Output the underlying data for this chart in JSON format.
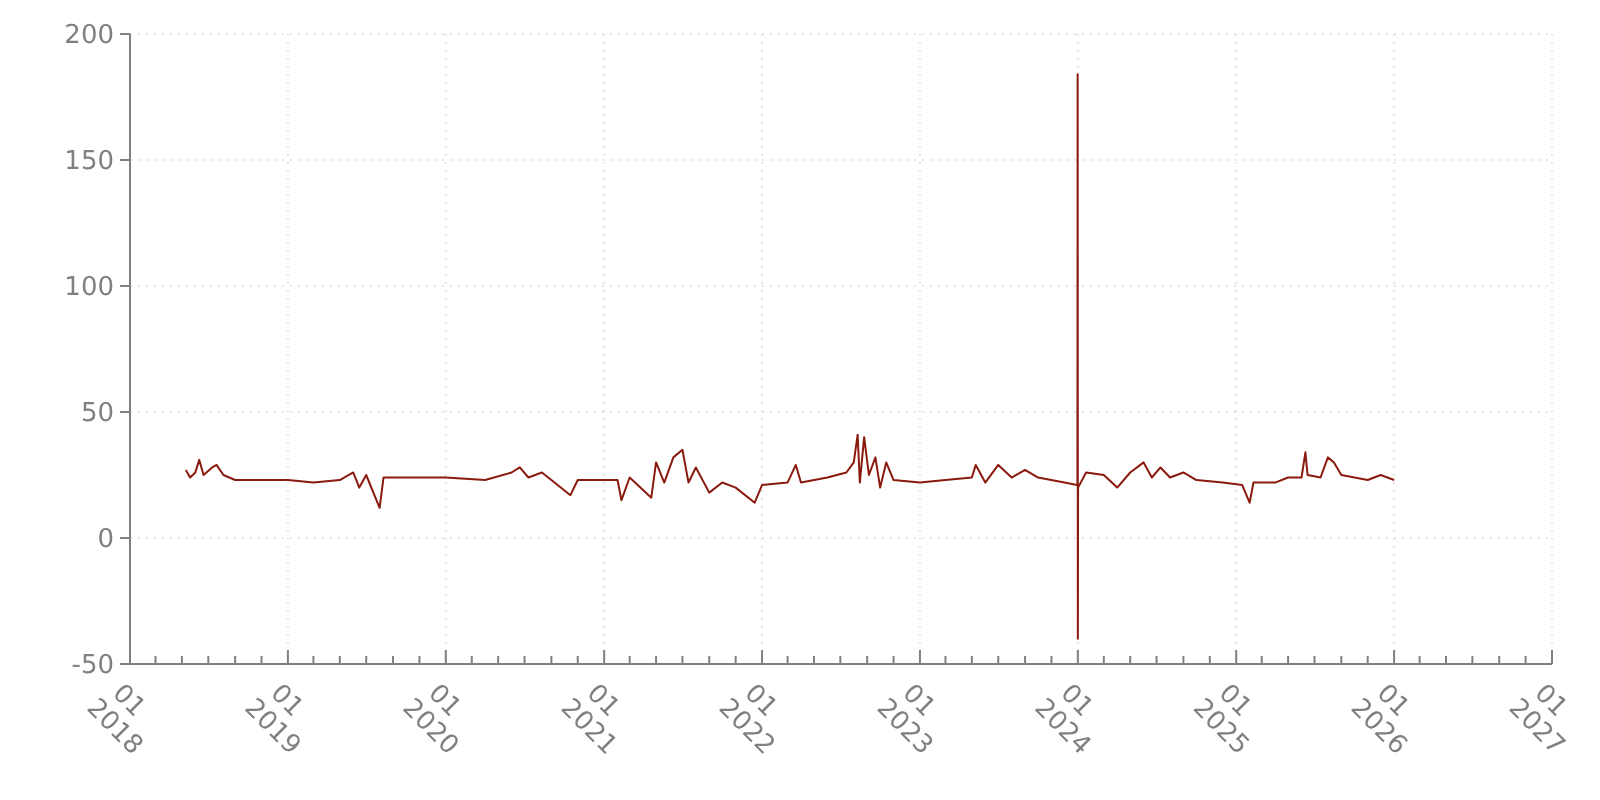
{
  "chart_data": {
    "type": "line",
    "grid": true,
    "line_style": "solid",
    "marker": "none",
    "xlim": [
      "2018-01-01",
      "2027-01-01"
    ],
    "xticks": [
      {
        "value": "2018-01-01",
        "label": "01\n2018"
      },
      {
        "value": "2018-03-01",
        "label": null
      },
      {
        "value": "2018-05-01",
        "label": null
      },
      {
        "value": "2018-07-01",
        "label": null
      },
      {
        "value": "2018-09-01",
        "label": null
      },
      {
        "value": "2018-11-01",
        "label": null
      },
      {
        "value": "2019-01-01",
        "label": "01\n2019"
      },
      {
        "value": "2019-03-01",
        "label": null
      },
      {
        "value": "2019-05-01",
        "label": null
      },
      {
        "value": "2019-07-01",
        "label": null
      },
      {
        "value": "2019-09-01",
        "label": null
      },
      {
        "value": "2019-11-01",
        "label": null
      },
      {
        "value": "2020-01-01",
        "label": "01\n2020"
      },
      {
        "value": "2020-03-01",
        "label": null
      },
      {
        "value": "2020-05-01",
        "label": null
      },
      {
        "value": "2020-07-01",
        "label": null
      },
      {
        "value": "2020-09-01",
        "label": null
      },
      {
        "value": "2020-11-01",
        "label": null
      },
      {
        "value": "2021-01-01",
        "label": "01\n2021"
      },
      {
        "value": "2021-03-01",
        "label": null
      },
      {
        "value": "2021-05-01",
        "label": null
      },
      {
        "value": "2021-07-01",
        "label": null
      },
      {
        "value": "2021-09-01",
        "label": null
      },
      {
        "value": "2021-11-01",
        "label": null
      },
      {
        "value": "2022-01-01",
        "label": "01\n2022"
      },
      {
        "value": "2022-03-01",
        "label": null
      },
      {
        "value": "2022-05-01",
        "label": null
      },
      {
        "value": "2022-07-01",
        "label": null
      },
      {
        "value": "2022-09-01",
        "label": null
      },
      {
        "value": "2022-11-01",
        "label": null
      },
      {
        "value": "2023-01-01",
        "label": "01\n2023"
      },
      {
        "value": "2023-03-01",
        "label": null
      },
      {
        "value": "2023-05-01",
        "label": null
      },
      {
        "value": "2023-07-01",
        "label": null
      },
      {
        "value": "2023-09-01",
        "label": null
      },
      {
        "value": "2023-11-01",
        "label": null
      },
      {
        "value": "2024-01-01",
        "label": "01\n2024"
      },
      {
        "value": "2024-03-01",
        "label": null
      },
      {
        "value": "2024-05-01",
        "label": null
      },
      {
        "value": "2024-07-01",
        "label": null
      },
      {
        "value": "2024-09-01",
        "label": null
      },
      {
        "value": "2024-11-01",
        "label": null
      },
      {
        "value": "2025-01-01",
        "label": "01\n2025"
      },
      {
        "value": "2025-03-01",
        "label": null
      },
      {
        "value": "2025-05-01",
        "label": null
      },
      {
        "value": "2025-07-01",
        "label": null
      },
      {
        "value": "2025-09-01",
        "label": null
      },
      {
        "value": "2025-11-01",
        "label": null
      },
      {
        "value": "2026-01-01",
        "label": "01\n2026"
      },
      {
        "value": "2026-03-01",
        "label": null
      },
      {
        "value": "2026-05-01",
        "label": null
      },
      {
        "value": "2026-07-01",
        "label": null
      },
      {
        "value": "2026-09-01",
        "label": null
      },
      {
        "value": "2026-11-01",
        "label": null
      },
      {
        "value": "2027-01-01",
        "label": "01\n2027"
      }
    ],
    "ylim": [
      -50,
      200
    ],
    "yticks": [
      -50,
      0,
      50,
      100,
      150,
      200
    ],
    "x": [
      "2018-05-10",
      "2018-05-20",
      "2018-06-01",
      "2018-06-10",
      "2018-06-20",
      "2018-07-10",
      "2018-07-20",
      "2018-08-05",
      "2018-09-01",
      "2018-11-01",
      "2019-01-01",
      "2019-03-01",
      "2019-05-01",
      "2019-06-01",
      "2019-06-15",
      "2019-07-01",
      "2019-08-01",
      "2019-08-10",
      "2019-10-01",
      "2020-01-01",
      "2020-04-01",
      "2020-06-01",
      "2020-06-20",
      "2020-07-10",
      "2020-08-10",
      "2020-09-01",
      "2020-10-15",
      "2020-11-01",
      "2021-02-01",
      "2021-02-10",
      "2021-03-01",
      "2021-04-20",
      "2021-05-01",
      "2021-05-20",
      "2021-06-10",
      "2021-07-01",
      "2021-07-15",
      "2021-08-01",
      "2021-09-01",
      "2021-10-01",
      "2021-11-01",
      "2021-12-15",
      "2022-01-01",
      "2022-03-01",
      "2022-03-20",
      "2022-04-01",
      "2022-06-01",
      "2022-07-15",
      "2022-08-01",
      "2022-08-10",
      "2022-08-15",
      "2022-08-25",
      "2022-09-05",
      "2022-09-20",
      "2022-10-01",
      "2022-10-15",
      "2022-11-01",
      "2023-01-01",
      "2023-03-01",
      "2023-05-01",
      "2023-05-10",
      "2023-06-01",
      "2023-07-01",
      "2023-08-01",
      "2023-09-01",
      "2023-10-01",
      "2023-12-01",
      "2023-12-30",
      "2023-12-31T00:00",
      "2023-12-31T12:00",
      "2024-01-01T00:00",
      "2024-01-01T12:00",
      "2024-01-20",
      "2024-03-01",
      "2024-04-01",
      "2024-05-01",
      "2024-06-01",
      "2024-06-20",
      "2024-07-10",
      "2024-08-01",
      "2024-09-01",
      "2024-10-01",
      "2024-12-01",
      "2025-01-15",
      "2025-02-01",
      "2025-02-10",
      "2025-04-01",
      "2025-05-01",
      "2025-06-01",
      "2025-06-10",
      "2025-06-15",
      "2025-07-15",
      "2025-08-01",
      "2025-08-15",
      "2025-09-01",
      "2025-11-01",
      "2025-12-01",
      "2026-01-01"
    ],
    "series": [
      {
        "color": "#8b1a0e",
        "values": [
          27,
          24,
          26,
          31,
          25,
          28,
          29,
          25,
          23,
          23,
          23,
          22,
          23,
          26,
          20,
          25,
          12,
          24,
          24,
          24,
          23,
          26,
          28,
          24,
          26,
          23,
          17,
          23,
          23,
          15,
          24,
          16,
          30,
          22,
          32,
          35,
          22,
          28,
          18,
          22,
          20,
          14,
          21,
          22,
          29,
          22,
          24,
          26,
          30,
          41,
          22,
          40,
          25,
          32,
          20,
          30,
          23,
          22,
          23,
          24,
          29,
          22,
          29,
          24,
          27,
          24,
          22,
          21,
          21,
          184,
          -40,
          20,
          26,
          25,
          20,
          26,
          30,
          24,
          28,
          24,
          26,
          23,
          22,
          21,
          14,
          22,
          22,
          24,
          24,
          34,
          25,
          24,
          32,
          30,
          25,
          23,
          25,
          23
        ]
      }
    ]
  }
}
